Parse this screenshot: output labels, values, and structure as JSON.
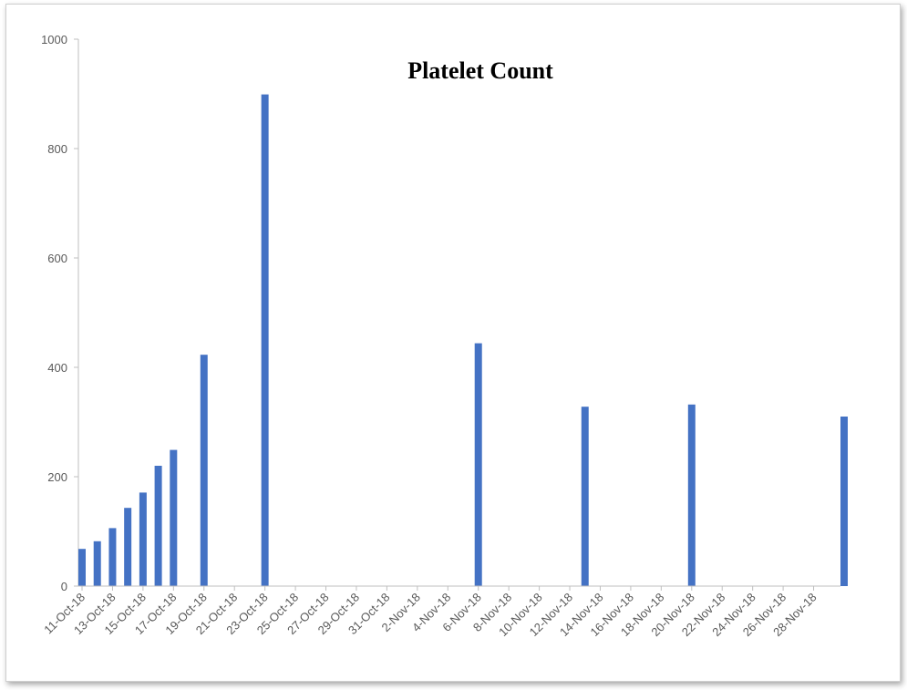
{
  "chart_data": {
    "type": "bar",
    "title": "Platelet Count",
    "xlabel": "",
    "ylabel": "",
    "ylim": [
      0,
      1000
    ],
    "yticks": [
      0,
      200,
      400,
      600,
      800,
      1000
    ],
    "x_axis_type": "date",
    "xlim": [
      "2018-10-11",
      "2018-11-30"
    ],
    "x_tick_labels": [
      "11-Oct-18",
      "13-Oct-18",
      "15-Oct-18",
      "17-Oct-18",
      "19-Oct-18",
      "21-Oct-18",
      "23-Oct-18",
      "25-Oct-18",
      "27-Oct-18",
      "29-Oct-18",
      "31-Oct-18",
      "2-Nov-18",
      "4-Nov-18",
      "6-Nov-18",
      "8-Nov-18",
      "10-Nov-18",
      "12-Nov-18",
      "14-Nov-18",
      "16-Nov-18",
      "18-Nov-18",
      "20-Nov-18",
      "22-Nov-18",
      "24-Nov-18",
      "26-Nov-18",
      "28-Nov-18"
    ],
    "x_tick_dates": [
      "2018-10-11",
      "2018-10-13",
      "2018-10-15",
      "2018-10-17",
      "2018-10-19",
      "2018-10-21",
      "2018-10-23",
      "2018-10-25",
      "2018-10-27",
      "2018-10-29",
      "2018-10-31",
      "2018-11-02",
      "2018-11-04",
      "2018-11-06",
      "2018-11-08",
      "2018-11-10",
      "2018-11-12",
      "2018-11-14",
      "2018-11-16",
      "2018-11-18",
      "2018-11-20",
      "2018-11-22",
      "2018-11-24",
      "2018-11-26",
      "2018-11-28"
    ],
    "grid": false,
    "bar_color": "#4472C4",
    "bars": [
      {
        "x": "2018-10-11",
        "y": 68
      },
      {
        "x": "2018-10-12",
        "y": 82
      },
      {
        "x": "2018-10-13",
        "y": 106
      },
      {
        "x": "2018-10-14",
        "y": 143
      },
      {
        "x": "2018-10-15",
        "y": 171
      },
      {
        "x": "2018-10-16",
        "y": 220
      },
      {
        "x": "2018-10-17",
        "y": 249
      },
      {
        "x": "2018-10-19",
        "y": 423
      },
      {
        "x": "2018-10-23",
        "y": 899
      },
      {
        "x": "2018-11-06",
        "y": 444
      },
      {
        "x": "2018-11-13",
        "y": 328
      },
      {
        "x": "2018-11-20",
        "y": 332
      },
      {
        "x": "2018-11-30",
        "y": 310
      }
    ]
  }
}
